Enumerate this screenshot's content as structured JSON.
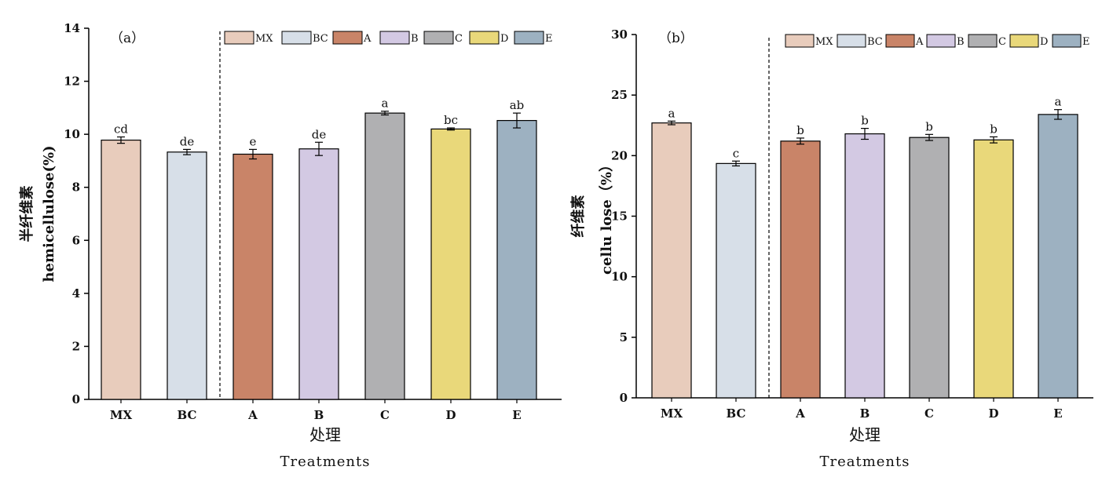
{
  "chart_data": [
    {
      "type": "bar",
      "panel_label": "（a）",
      "categories": [
        "MX",
        "BC",
        "A",
        "B",
        "C",
        "D",
        "E"
      ],
      "values": [
        9.78,
        9.33,
        9.25,
        9.45,
        10.8,
        10.2,
        10.52
      ],
      "errors": [
        0.12,
        0.1,
        0.18,
        0.25,
        0.07,
        0.04,
        0.28
      ],
      "significance": [
        "cd",
        "de",
        "e",
        "de",
        "a",
        "bc",
        "ab"
      ],
      "colors": [
        "#E8CCBC",
        "#D7DFE8",
        "#C98468",
        "#D3C9E3",
        "#B0B0B2",
        "#E9D87A",
        "#9DB1C1"
      ],
      "legend": [
        "MX",
        "BC",
        "A",
        "B",
        "C",
        "D",
        "E"
      ],
      "legend_position": "top-right",
      "ylabel_cn": "半纤维素",
      "ylabel_en": "hemicellulose(%)",
      "xlabel_cn": "处理",
      "xlabel_en": "Treatments",
      "ylim": [
        0,
        14
      ],
      "yticks": [
        0,
        2,
        4,
        6,
        8,
        10,
        12,
        14
      ],
      "ytick_labels": [
        "0",
        "2",
        "4",
        "6",
        "8",
        "10",
        "12",
        "14"
      ],
      "grid": false,
      "separator_after_category": "BC"
    },
    {
      "type": "bar",
      "panel_label": "（b）",
      "categories": [
        "MX",
        "BC",
        "A",
        "B",
        "C",
        "D",
        "E"
      ],
      "values": [
        22.7,
        19.35,
        21.2,
        21.8,
        21.5,
        21.3,
        23.4
      ],
      "errors": [
        0.15,
        0.2,
        0.25,
        0.45,
        0.25,
        0.25,
        0.4
      ],
      "significance": [
        "a",
        "c",
        "b",
        "b",
        "b",
        "b",
        "a"
      ],
      "colors": [
        "#E8CCBC",
        "#D7DFE8",
        "#C98468",
        "#D3C9E3",
        "#B0B0B2",
        "#E9D87A",
        "#9DB1C1"
      ],
      "legend": [
        "MX",
        "BC",
        "A",
        "B",
        "C",
        "D",
        "E"
      ],
      "legend_position": "top-right",
      "ylabel_cn": "纤维素",
      "ylabel_en": "cellu lose（%）",
      "xlabel_cn": "处理",
      "xlabel_en": "Treatments",
      "ylim": [
        0,
        30
      ],
      "yticks": [
        0,
        5,
        10,
        15,
        20,
        25,
        30
      ],
      "ytick_labels": [
        "0",
        "5",
        "10",
        "15",
        "20",
        "25",
        "30"
      ],
      "grid": false,
      "separator_after_category": "BC"
    }
  ]
}
